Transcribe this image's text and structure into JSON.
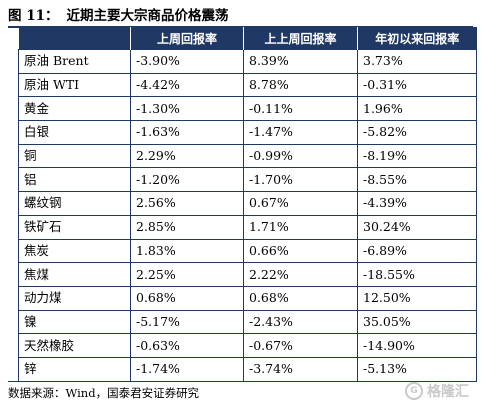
{
  "figure": {
    "label": "图 11：",
    "title": "近期主要大宗商品价格震荡"
  },
  "table": {
    "headers": [
      "",
      "上周回报率",
      "上上周回报率",
      "年初以来回报率"
    ],
    "rows": [
      {
        "name": "原油 Brent",
        "week": "-3.90%",
        "prev_week": "8.39%",
        "ytd": "3.73%"
      },
      {
        "name": "原油 WTI",
        "week": "-4.42%",
        "prev_week": "8.78%",
        "ytd": "-0.31%"
      },
      {
        "name": "黄金",
        "week": "-1.30%",
        "prev_week": "-0.11%",
        "ytd": "1.96%"
      },
      {
        "name": "白银",
        "week": "-1.63%",
        "prev_week": "-1.47%",
        "ytd": "-5.82%"
      },
      {
        "name": "铜",
        "week": "2.29%",
        "prev_week": "-0.99%",
        "ytd": "-8.19%"
      },
      {
        "name": "铝",
        "week": "-1.20%",
        "prev_week": "-1.70%",
        "ytd": "-8.55%"
      },
      {
        "name": "螺纹钢",
        "week": "2.56%",
        "prev_week": "0.67%",
        "ytd": "-4.39%"
      },
      {
        "name": "铁矿石",
        "week": "2.85%",
        "prev_week": "1.71%",
        "ytd": "30.24%"
      },
      {
        "name": "焦炭",
        "week": "1.83%",
        "prev_week": "0.66%",
        "ytd": "-6.89%"
      },
      {
        "name": "焦煤",
        "week": "2.25%",
        "prev_week": "2.22%",
        "ytd": "-18.55%"
      },
      {
        "name": "动力煤",
        "week": "0.68%",
        "prev_week": "0.68%",
        "ytd": "12.50%"
      },
      {
        "name": "镍",
        "week": "-5.17%",
        "prev_week": "-2.43%",
        "ytd": "35.05%"
      },
      {
        "name": "天然橡胶",
        "week": "-0.63%",
        "prev_week": "-0.67%",
        "ytd": "-14.90%"
      },
      {
        "name": "锌",
        "week": "-1.74%",
        "prev_week": "-3.74%",
        "ytd": "-5.13%"
      }
    ]
  },
  "source": "数据来源：Wind，国泰君安证券研究",
  "watermark": {
    "logo": "G",
    "text": "格隆汇"
  },
  "colors": {
    "header_bg": "#1f3864",
    "header_text": "#ffffff",
    "border": "#1f3864"
  }
}
